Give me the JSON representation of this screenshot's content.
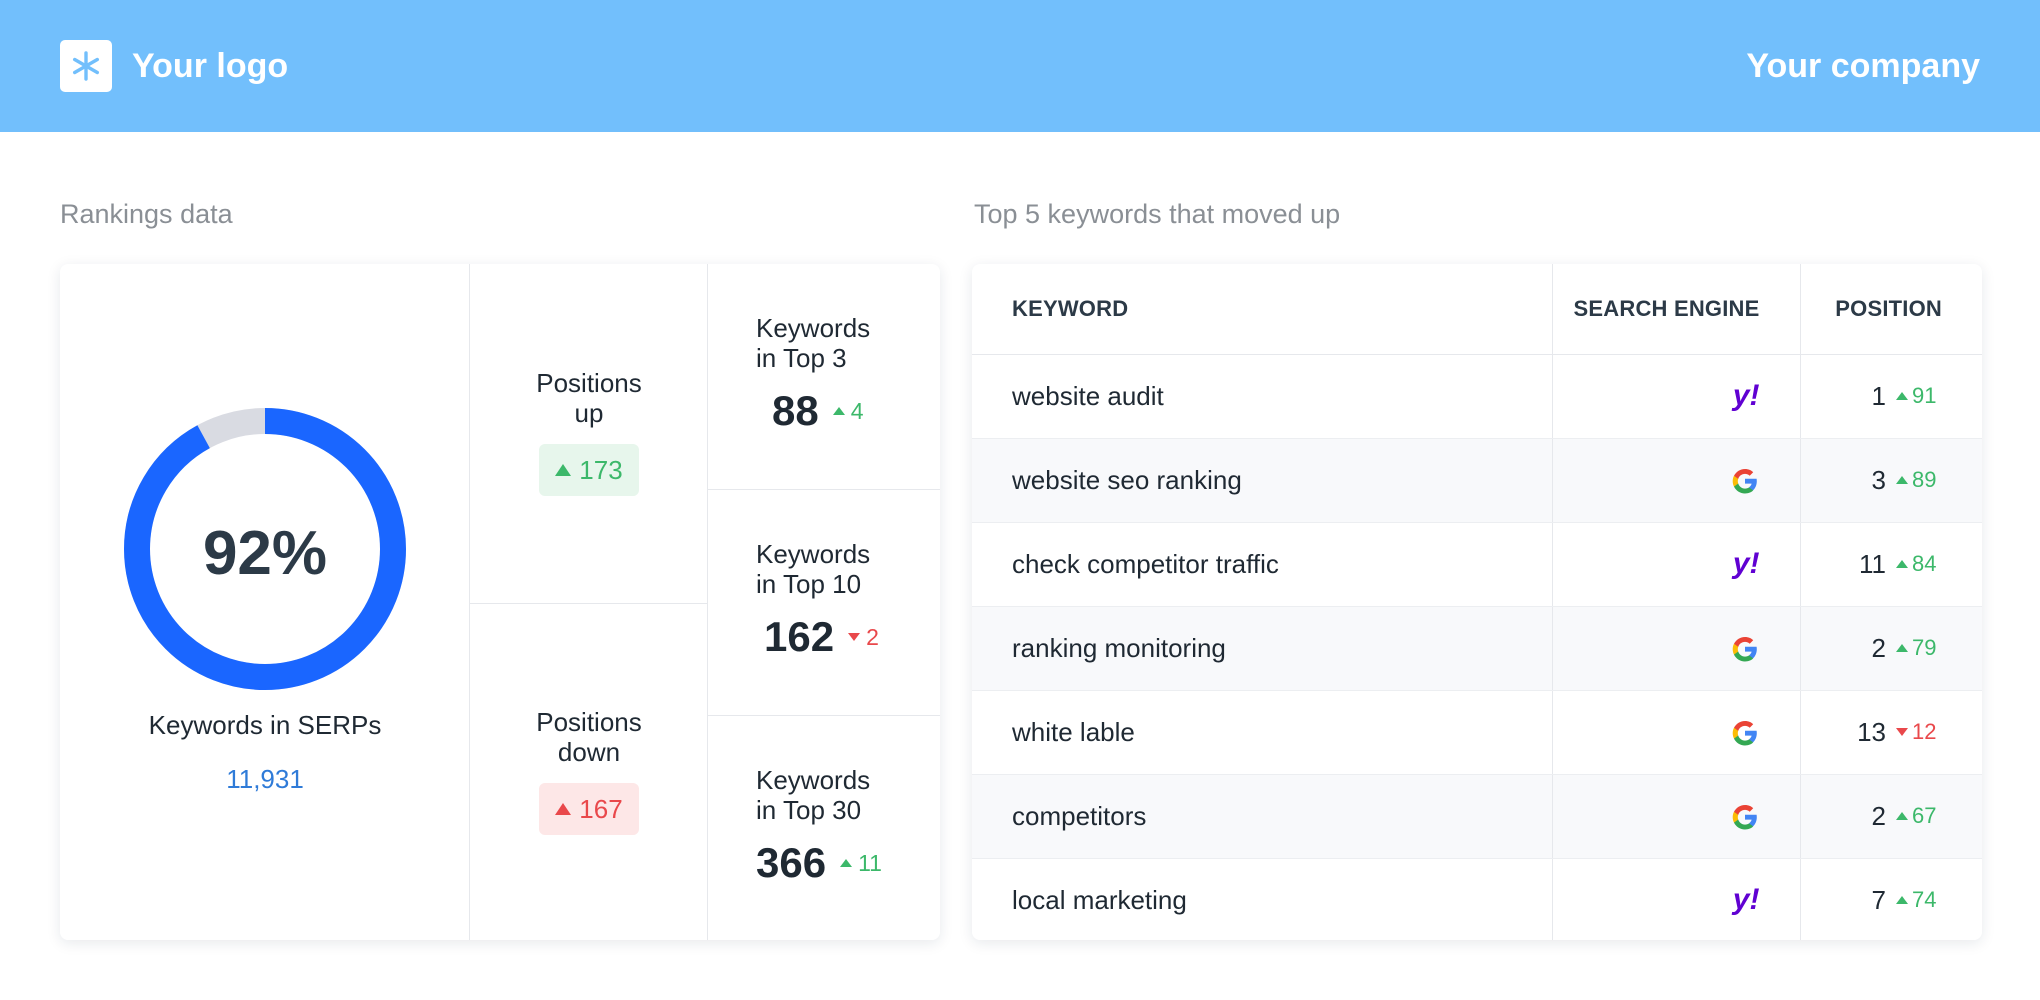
{
  "header": {
    "logo_text": "Your logo",
    "company": "Your company",
    "logo_icon": "asterisk-icon",
    "bar_color": "#72bffc"
  },
  "rankings": {
    "section_title": "Rankings data",
    "donut": {
      "percent_label": "92%",
      "percent_value": 92,
      "color": "#1a66ff",
      "remainder_color": "#d9dbe2"
    },
    "serps_label": "Keywords in SERPs",
    "serps_count": "11,931",
    "positions_up": {
      "title_line1": "Positions",
      "title_line2": "up",
      "value": "173",
      "direction": "up"
    },
    "positions_down": {
      "title_line1": "Positions",
      "title_line2": "down",
      "value": "167",
      "direction": "up"
    },
    "top3": {
      "title_line1": "Keywords",
      "title_line2": "in Top 3",
      "value": "88",
      "delta": "4",
      "direction": "up"
    },
    "top10": {
      "title_line1": "Keywords",
      "title_line2": "in Top 10",
      "value": "162",
      "delta": "2",
      "direction": "down"
    },
    "top30": {
      "title_line1": "Keywords",
      "title_line2": "in Top 30",
      "value": "366",
      "delta": "11",
      "direction": "up"
    }
  },
  "keywords": {
    "section_title": "Top 5 keywords that moved up",
    "columns": [
      "KEYWORD",
      "SEARCH ENGINE",
      "POSITION"
    ],
    "rows": [
      {
        "keyword": "website audit",
        "engine": "yahoo",
        "position": "1",
        "delta": "91",
        "direction": "up"
      },
      {
        "keyword": "website seo ranking",
        "engine": "google",
        "position": "3",
        "delta": "89",
        "direction": "up"
      },
      {
        "keyword": "check competitor traffic",
        "engine": "yahoo",
        "position": "11",
        "delta": "84",
        "direction": "up"
      },
      {
        "keyword": "ranking monitoring",
        "engine": "google",
        "position": "2",
        "delta": "79",
        "direction": "up"
      },
      {
        "keyword": "white lable",
        "engine": "google",
        "position": "13",
        "delta": "12",
        "direction": "down"
      },
      {
        "keyword": "competitors",
        "engine": "google",
        "position": "2",
        "delta": "67",
        "direction": "up"
      },
      {
        "keyword": "local marketing",
        "engine": "yahoo",
        "position": "7",
        "delta": "74",
        "direction": "up"
      }
    ],
    "yahoo_mark": "y!"
  }
}
